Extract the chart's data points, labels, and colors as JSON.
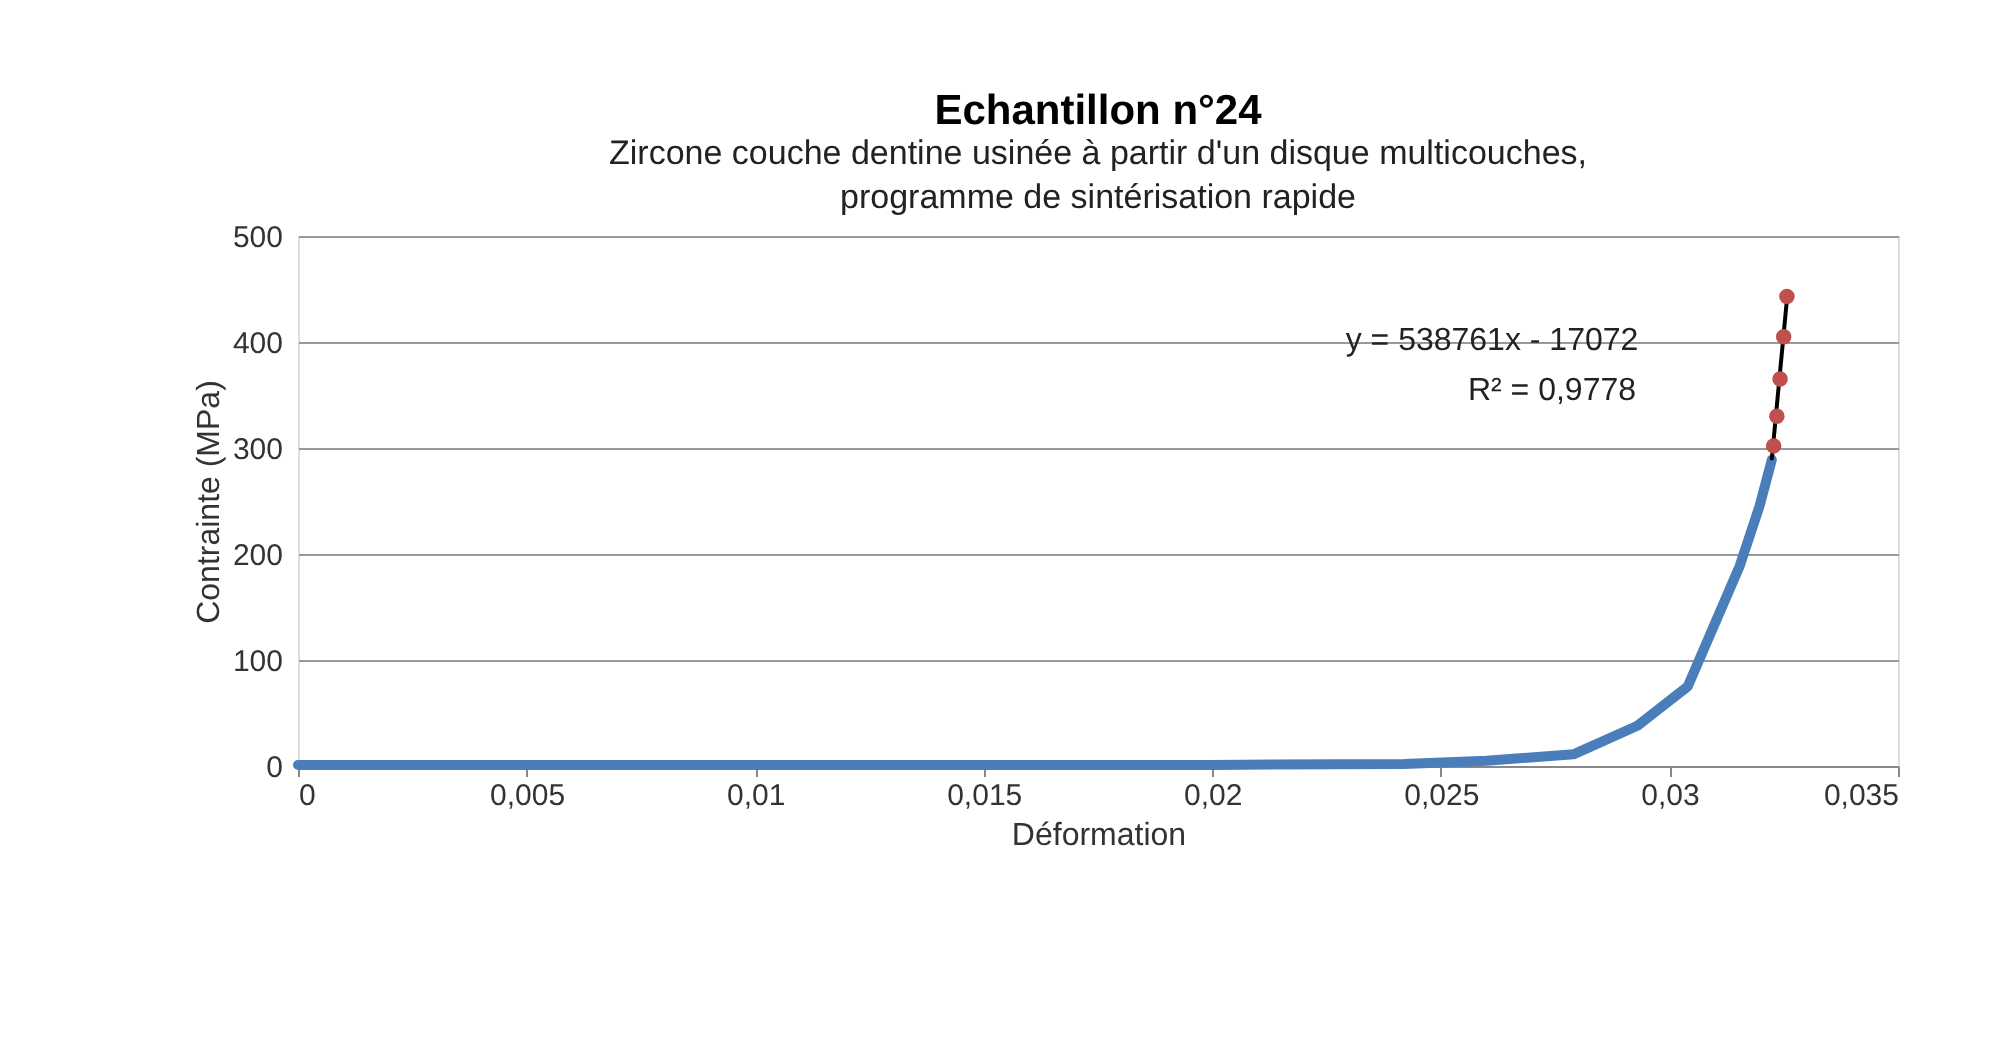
{
  "chart_data": {
    "type": "line",
    "title": "Echantillon n°24",
    "subtitle": "Zircone couche dentine usinée à partir d'un disque multicouches, programme de sintérisation rapide",
    "xlabel": "Déformation",
    "ylabel": "Contrainte (MPa)",
    "series": [
      {
        "color": "#4a7ebb",
        "x": [
          0,
          0.005,
          0.01,
          0.015,
          0.02,
          0.0242,
          0.026,
          0.0279,
          0.0293,
          0.0304,
          0.0309,
          0.03154,
          0.03197,
          0.03224
        ],
        "values": [
          1,
          1,
          1,
          1,
          1,
          2,
          5,
          11,
          38,
          75,
          125,
          189,
          245,
          289
        ]
      },
      {
        "type": "line",
        "color": "#000000",
        "x": [
          0.03224,
          0.03257
        ],
        "values": [
          290,
          440
        ]
      },
      {
        "type": "scatter",
        "color": "#c0504d",
        "x": [
          0.03228,
          0.03235,
          0.03242,
          0.0325,
          0.03257
        ],
        "values": [
          302,
          330,
          365,
          405,
          443
        ]
      }
    ],
    "annotations": [
      "y = 538761x - 17072",
      "R² = 0,9778"
    ],
    "xlim": [
      0,
      0.035
    ],
    "xticks": [
      0,
      {
        "value": 0.005,
        "label": "0,005"
      },
      {
        "value": 0.01,
        "label": "0,01"
      },
      {
        "value": 0.015,
        "label": "0,015"
      },
      {
        "value": 0.02,
        "label": "0,02"
      },
      {
        "value": 0.025,
        "label": "0,025"
      },
      {
        "value": 0.03,
        "label": "0,03"
      },
      {
        "value": 0.035,
        "label": "0,035"
      }
    ],
    "ylim": [
      0,
      500
    ],
    "yticks": [
      0,
      100,
      200,
      300,
      400,
      500
    ],
    "grid": "y"
  }
}
